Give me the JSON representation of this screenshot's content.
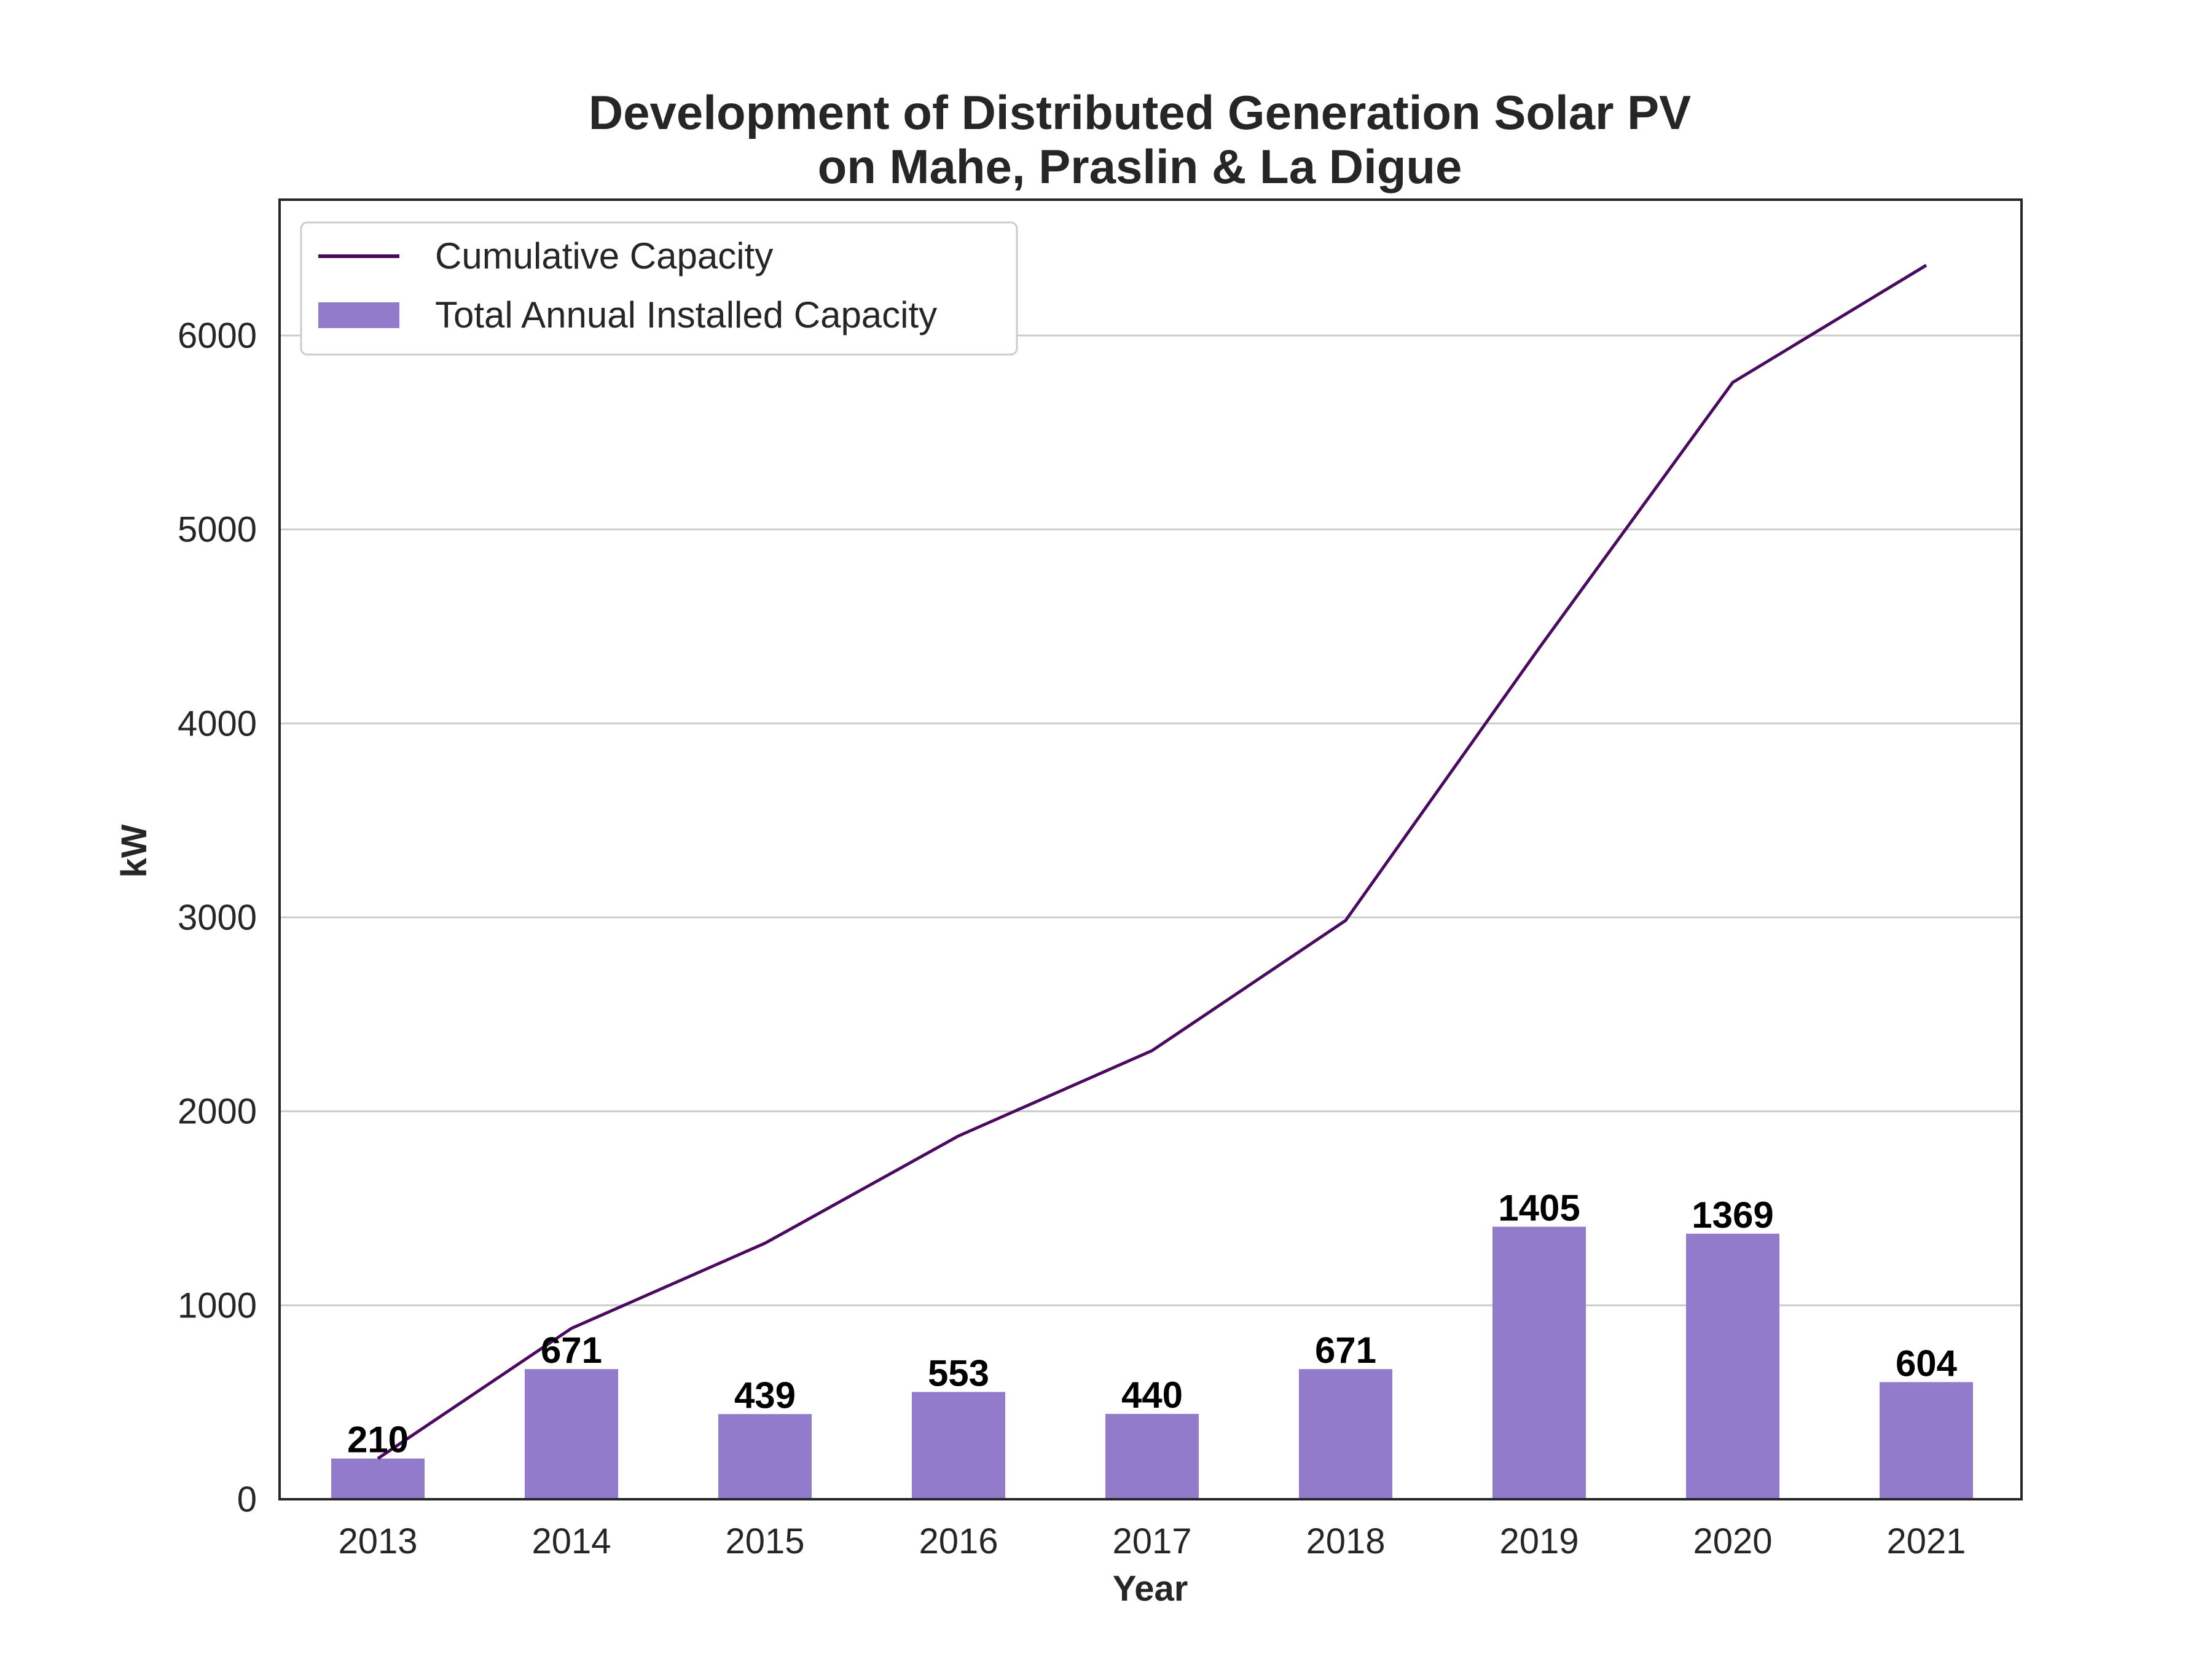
{
  "chart_data": {
    "type": "bar",
    "title": "Development of Distributed Generation Solar PV\non Mahe, Praslin & La Digue",
    "xlabel": "Year",
    "ylabel": "kW",
    "categories": [
      "2013",
      "2014",
      "2015",
      "2016",
      "2017",
      "2018",
      "2019",
      "2020",
      "2021"
    ],
    "ylim": [
      0,
      6700
    ],
    "yticks": [
      0,
      1000,
      2000,
      3000,
      4000,
      5000,
      6000
    ],
    "grid": "horizontal",
    "legend_position": "top-left",
    "series": [
      {
        "name": "Cumulative Capacity",
        "type": "line",
        "color": "#4b0a60",
        "values": [
          210,
          881,
          1320,
          1873,
          2313,
          2984,
          4389,
          5758,
          6362
        ]
      },
      {
        "name": "Total Annual Installed Capacity",
        "type": "bar",
        "color": "#917bca",
        "values": [
          210,
          671,
          439,
          553,
          440,
          671,
          1405,
          1369,
          604
        ],
        "labels": [
          "210",
          "671",
          "439",
          "553",
          "440",
          "671",
          "1405",
          "1369",
          "604"
        ]
      }
    ]
  }
}
